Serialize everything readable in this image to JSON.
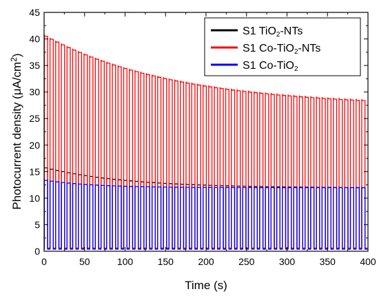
{
  "chart_data": {
    "type": "line",
    "title": "",
    "xlabel": "Time (s)",
    "ylabel": "Photocurrent density (μA/cm²)",
    "ylabel_parts": {
      "main": "Photocurrent density (",
      "unit": "μA/cm",
      "sup": "2",
      "close": ")"
    },
    "xlim": [
      0,
      400
    ],
    "ylim": [
      0,
      45
    ],
    "xticks": [
      0,
      50,
      100,
      150,
      200,
      250,
      300,
      350,
      400
    ],
    "yticks": [
      0,
      5,
      10,
      15,
      20,
      25,
      30,
      35,
      40,
      45
    ],
    "grid": false,
    "legend_position": "top-right",
    "light_cycle": {
      "period_s": 7,
      "on_s": 4,
      "cycles": 57
    },
    "series": [
      {
        "name": "S1 TiO2-NTs",
        "legend_parts": {
          "a": "S1 TiO",
          "sub": "2",
          "b": "-NTs"
        },
        "color": "#000000",
        "on_peak_start": 15.8,
        "on_peak_end": 12.0,
        "on_decay_tau_s": 100,
        "dark_level": 0.5
      },
      {
        "name": "S1 Co-TiO2-NTs",
        "legend_parts": {
          "a": "S1 Co-TiO",
          "sub": "2",
          "b": "-NTs"
        },
        "color": "#ff0000",
        "on_peak_start": 40.8,
        "on_peak_end": 27.5,
        "on_decay_tau_s": 160,
        "dark_level": 0.6
      },
      {
        "name": "S1 Co-TiO2",
        "legend_parts": {
          "a": "S1 Co-TiO",
          "sub": "2",
          "b": ""
        },
        "color": "#0000ff",
        "on_peak_start": 13.4,
        "on_peak_end": 12.0,
        "on_decay_tau_s": 60,
        "dark_level": 0.4
      }
    ]
  }
}
